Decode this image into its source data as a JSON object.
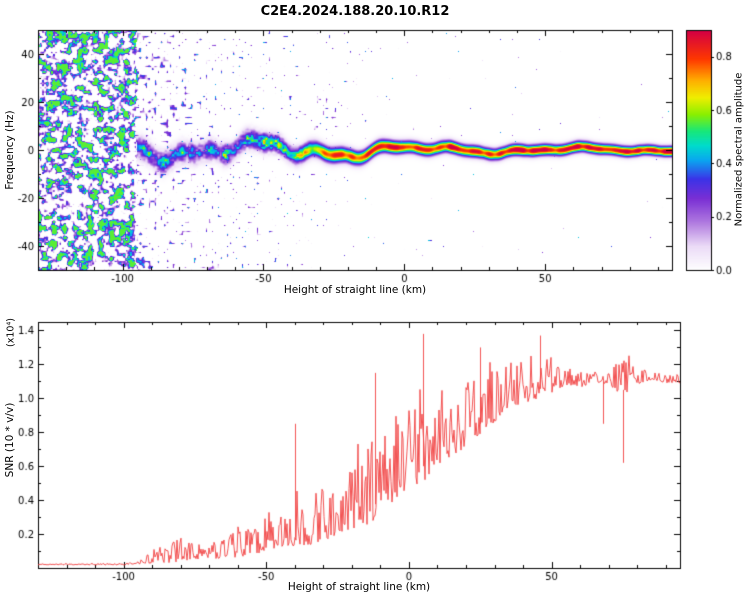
{
  "title": "C2E4.2024.188.20.10.R12",
  "chart_data": [
    {
      "type": "heatmap",
      "title": "C2E4.2024.188.20.10.R12",
      "xlabel": "Height of straight line (km)",
      "ylabel": "Frequency (Hz)",
      "xlim": [
        -130,
        95
      ],
      "ylim": [
        -50,
        50
      ],
      "xticks": [
        -100,
        -50,
        0,
        50
      ],
      "yticks": [
        -40,
        -20,
        0,
        20,
        40
      ],
      "colorbar": {
        "label": "Normalized spectral amplitude",
        "ticks": [
          0.0,
          0.2,
          0.4,
          0.6,
          0.8
        ],
        "vmin": 0.0,
        "vmax": 0.9,
        "colormap": [
          [
            0.0,
            "#ffffff"
          ],
          [
            0.1,
            "#ecdcf7"
          ],
          [
            0.2,
            "#b07ae0"
          ],
          [
            0.3,
            "#7a2fd4"
          ],
          [
            0.38,
            "#3c33e8"
          ],
          [
            0.46,
            "#0aa8f0"
          ],
          [
            0.52,
            "#00dccc"
          ],
          [
            0.58,
            "#18e87a"
          ],
          [
            0.65,
            "#8af000"
          ],
          [
            0.72,
            "#f0ee00"
          ],
          [
            0.79,
            "#ffb000"
          ],
          [
            0.88,
            "#ff3800"
          ],
          [
            1.0,
            "#d40045"
          ]
        ]
      },
      "noise_wall": {
        "end_km": -95,
        "max_amplitude": 0.62
      },
      "signal_band": {
        "center_hz": 0,
        "start_km": -95,
        "intensity_profile": [
          [
            -95,
            0.55
          ],
          [
            -60,
            0.63
          ],
          [
            -40,
            0.76
          ],
          [
            -25,
            0.88
          ],
          [
            -10,
            0.94
          ],
          [
            95,
            0.97
          ]
        ],
        "width_hz_profile": [
          [
            -95,
            3.9
          ],
          [
            -50,
            3.3
          ],
          [
            -20,
            2.7
          ],
          [
            0,
            2.3
          ],
          [
            95,
            1.9
          ]
        ],
        "wander_hz_profile": [
          [
            -95,
            1.0
          ],
          [
            -30,
            1.0
          ],
          [
            0,
            0.45
          ],
          [
            95,
            0.18
          ]
        ]
      },
      "description": "Dense purple noise speckle left of -95 km; narrow spectral ridge near 0 Hz strengthening from dotted cyan/green (-95 to -40 km) to a continuous red core with yellow/green/blue fringe toward +95 km; sparse purple speckle and plumes around -30 to -20 km."
    },
    {
      "type": "line",
      "xlabel": "Height of straight line (km)",
      "ylabel": "SNR (10 * v/v)",
      "scale_note": "(x10⁴)",
      "xlim": [
        -130,
        95
      ],
      "ylim": [
        0,
        1.45
      ],
      "xticks": [
        -100,
        -50,
        0,
        50
      ],
      "yticks": [
        0.2,
        0.4,
        0.6,
        0.8,
        1.0,
        1.2,
        1.4
      ],
      "line_color": "#f04040",
      "series": [
        {
          "name": "SNR",
          "x": [
            -130,
            -100,
            -95,
            -90,
            -85,
            -80,
            -75,
            -70,
            -65,
            -60,
            -55,
            -50,
            -45,
            -40,
            -35,
            -30,
            -25,
            -20,
            -15,
            -10,
            -5,
            0,
            5,
            10,
            15,
            20,
            25,
            30,
            35,
            40,
            45,
            50,
            55,
            60,
            65,
            70,
            75,
            80,
            85,
            90,
            95
          ],
          "base": [
            0.02,
            0.02,
            0.03,
            0.04,
            0.05,
            0.06,
            0.07,
            0.07,
            0.08,
            0.09,
            0.11,
            0.14,
            0.16,
            0.18,
            0.2,
            0.22,
            0.26,
            0.3,
            0.34,
            0.4,
            0.48,
            0.55,
            0.6,
            0.68,
            0.72,
            0.78,
            0.85,
            0.92,
            0.98,
            1.02,
            1.05,
            1.08,
            1.1,
            1.08,
            1.1,
            1.1,
            1.05,
            1.1,
            1.12,
            1.1,
            1.1
          ],
          "noise_amp": [
            0.005,
            0.01,
            0.03,
            0.06,
            0.1,
            0.16,
            0.1,
            0.09,
            0.12,
            0.16,
            0.18,
            0.22,
            0.18,
            0.28,
            0.34,
            0.42,
            0.3,
            0.38,
            0.52,
            0.48,
            0.42,
            0.38,
            0.55,
            0.4,
            0.35,
            0.38,
            0.32,
            0.32,
            0.3,
            0.3,
            0.28,
            0.26,
            0.12,
            0.08,
            0.06,
            0.06,
            0.25,
            0.08,
            0.06,
            0.05,
            0.05
          ],
          "spikes": [
            {
              "x": -40,
              "v": 0.85
            },
            {
              "x": -12,
              "v": 1.15
            },
            {
              "x": 5,
              "v": 1.38
            },
            {
              "x": 25,
              "v": 1.3
            },
            {
              "x": 46,
              "v": 1.37
            },
            {
              "x": 68,
              "v": 0.85
            },
            {
              "x": 75,
              "v": 0.62
            }
          ]
        }
      ]
    }
  ]
}
